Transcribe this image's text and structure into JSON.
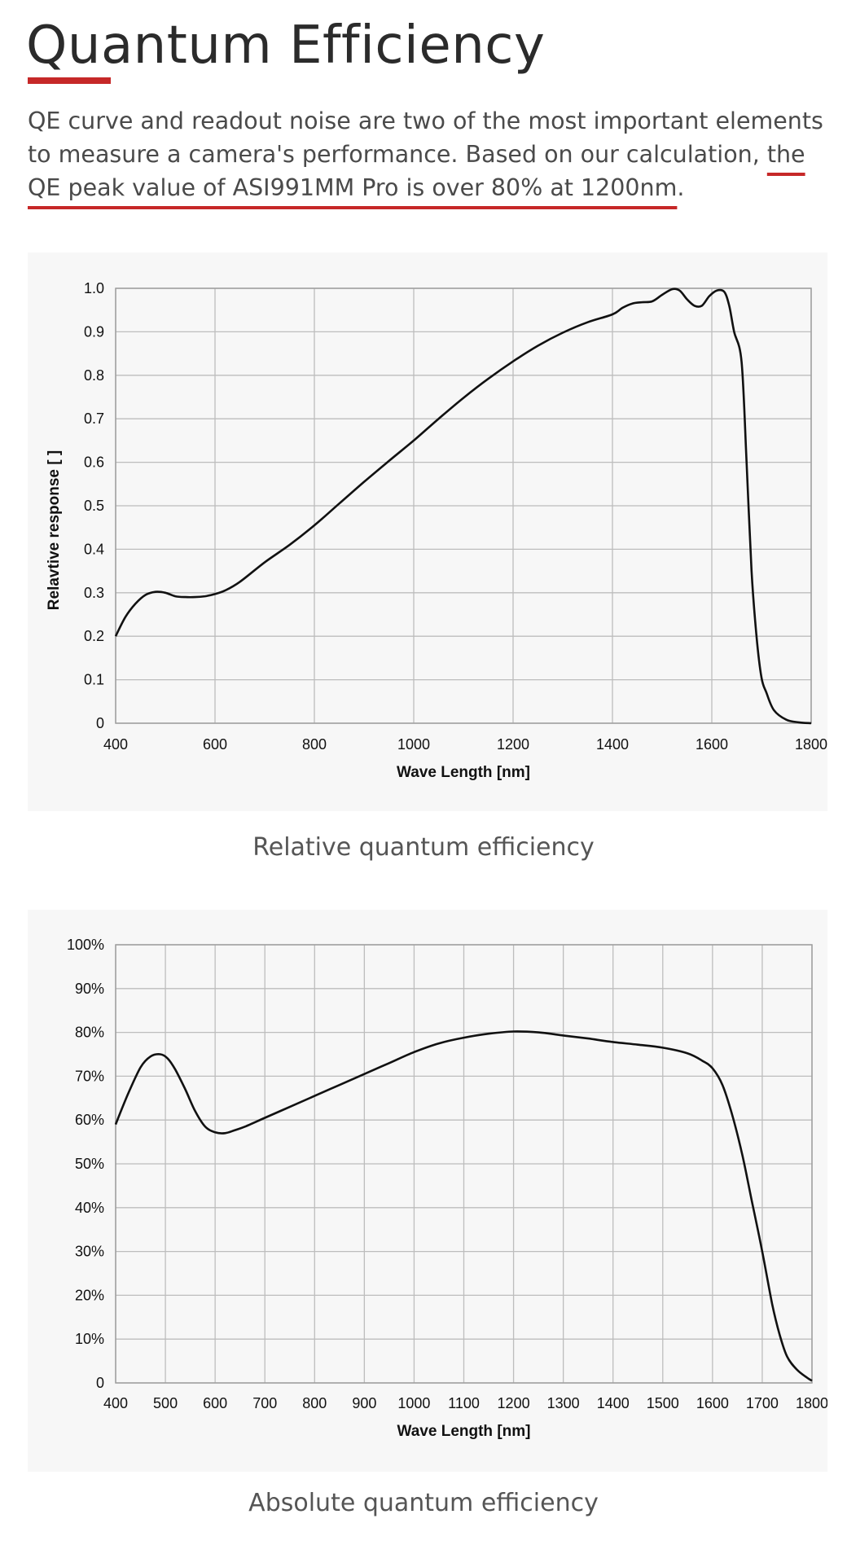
{
  "page": {
    "title": "Quantum Efficiency",
    "intro_plain": "QE curve and readout noise are two of the most important elements to measure a camera's performance. Based on our calculation, ",
    "intro_highlight": "the QE peak value of ASI991MM Pro is over 80% at 1200nm",
    "intro_end": ".",
    "accent_color": "#c62828"
  },
  "chart_data": [
    {
      "type": "line",
      "title": "",
      "caption": "Relative quantum efficiency",
      "xlabel": "Wave Length [nm]",
      "ylabel": "Relavtive response [ ]",
      "xlim": [
        400,
        1800
      ],
      "ylim": [
        0,
        1.0
      ],
      "x_ticks": [
        400,
        600,
        800,
        1000,
        1200,
        1400,
        1600,
        1800
      ],
      "x_tick_labels": [
        "400",
        "600",
        "800",
        "1000",
        "1200",
        "1400",
        "1600",
        "1800"
      ],
      "y_ticks": [
        0,
        0.1,
        0.2,
        0.3,
        0.4,
        0.5,
        0.6,
        0.7,
        0.8,
        0.9,
        1.0
      ],
      "y_tick_labels": [
        "0",
        "0.1",
        "0.2",
        "0.3",
        "0.4",
        "0.5",
        "0.6",
        "0.7",
        "0.8",
        "0.9",
        "1.0"
      ],
      "grid": true,
      "series": [
        {
          "name": "Relative response",
          "x": [
            400,
            420,
            440,
            460,
            480,
            500,
            520,
            540,
            560,
            580,
            600,
            620,
            650,
            700,
            750,
            800,
            850,
            900,
            950,
            1000,
            1050,
            1100,
            1150,
            1200,
            1250,
            1300,
            1350,
            1400,
            1420,
            1440,
            1460,
            1480,
            1500,
            1520,
            1535,
            1550,
            1565,
            1580,
            1595,
            1610,
            1625,
            1635,
            1645,
            1660,
            1670,
            1680,
            1690,
            1700,
            1710,
            1725,
            1750,
            1775,
            1800
          ],
          "y": [
            0.2,
            0.245,
            0.275,
            0.295,
            0.302,
            0.3,
            0.292,
            0.29,
            0.29,
            0.292,
            0.297,
            0.305,
            0.325,
            0.37,
            0.41,
            0.455,
            0.505,
            0.555,
            0.603,
            0.65,
            0.7,
            0.748,
            0.792,
            0.832,
            0.868,
            0.898,
            0.922,
            0.94,
            0.955,
            0.965,
            0.968,
            0.97,
            0.985,
            0.998,
            0.995,
            0.975,
            0.96,
            0.96,
            0.982,
            0.995,
            0.992,
            0.96,
            0.9,
            0.83,
            0.6,
            0.35,
            0.2,
            0.105,
            0.07,
            0.03,
            0.008,
            0.002,
            0.0
          ]
        }
      ]
    },
    {
      "type": "line",
      "title": "",
      "caption": "Absolute quantum efficiency",
      "xlabel": "Wave Length [nm]",
      "ylabel": "",
      "xlim": [
        400,
        1800
      ],
      "ylim": [
        0,
        100
      ],
      "x_ticks": [
        400,
        500,
        600,
        700,
        800,
        900,
        1000,
        1100,
        1200,
        1300,
        1400,
        1500,
        1600,
        1700,
        1800
      ],
      "x_tick_labels": [
        "400",
        "500",
        "600",
        "700",
        "800",
        "900",
        "1000",
        "1100",
        "1200",
        "1300",
        "1400",
        "1500",
        "1600",
        "1700",
        "1800"
      ],
      "y_ticks": [
        0,
        10,
        20,
        30,
        40,
        50,
        60,
        70,
        80,
        90,
        100
      ],
      "y_tick_labels": [
        "0",
        "10%",
        "20%",
        "30%",
        "40%",
        "50%",
        "60%",
        "70%",
        "80%",
        "90%",
        "100%"
      ],
      "grid": true,
      "series": [
        {
          "name": "Absolute QE",
          "x": [
            400,
            425,
            450,
            470,
            490,
            505,
            520,
            540,
            560,
            580,
            600,
            620,
            640,
            660,
            700,
            750,
            800,
            850,
            900,
            950,
            1000,
            1050,
            1100,
            1150,
            1200,
            1250,
            1300,
            1350,
            1400,
            1450,
            1500,
            1550,
            1580,
            1600,
            1620,
            1640,
            1660,
            1680,
            1700,
            1720,
            1735,
            1750,
            1770,
            1790,
            1800
          ],
          "y": [
            59,
            66,
            72,
            74.5,
            75,
            74,
            71.5,
            67,
            62,
            58.5,
            57.2,
            57,
            57.7,
            58.5,
            60.5,
            63,
            65.5,
            68,
            70.5,
            73,
            75.5,
            77.5,
            78.8,
            79.7,
            80.2,
            80,
            79.3,
            78.6,
            77.8,
            77.2,
            76.5,
            75.2,
            73.5,
            71.8,
            68,
            61,
            52,
            41,
            30,
            18,
            11,
            6,
            3,
            1.2,
            0.5
          ]
        }
      ]
    }
  ]
}
